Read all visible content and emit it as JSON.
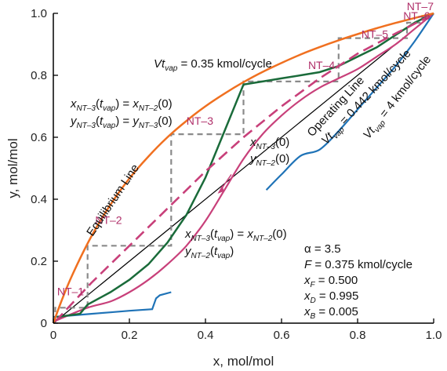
{
  "chart_data": {
    "type": "line",
    "xlabel": "x, mol/mol",
    "ylabel": "y, mol/mol",
    "xlim": [
      0,
      1
    ],
    "ylim": [
      0,
      1
    ],
    "xticks": [
      "0",
      "0.2",
      "0.4",
      "0.6",
      "0.8",
      "1.0"
    ],
    "yticks": [
      "0",
      "0.2",
      "0.4",
      "0.6",
      "0.8",
      "1.0"
    ],
    "grid": false,
    "colors": {
      "equilibrium": "#f07020",
      "operating": "#c8407a",
      "green": "#1a6b3a",
      "blue": "#1f73b7",
      "steps": "#8a8a8a",
      "nt_label": "#b0306a"
    },
    "series": [
      {
        "key": "equilibrium",
        "name": "Equilibrium Line",
        "points": [
          [
            0,
            0
          ],
          [
            0.02,
            0.067
          ],
          [
            0.05,
            0.156
          ],
          [
            0.1,
            0.28
          ],
          [
            0.15,
            0.382
          ],
          [
            0.2,
            0.467
          ],
          [
            0.25,
            0.538
          ],
          [
            0.3,
            0.6
          ],
          [
            0.35,
            0.653
          ],
          [
            0.4,
            0.7
          ],
          [
            0.45,
            0.741
          ],
          [
            0.5,
            0.778
          ],
          [
            0.55,
            0.811
          ],
          [
            0.6,
            0.84
          ],
          [
            0.65,
            0.867
          ],
          [
            0.7,
            0.891
          ],
          [
            0.75,
            0.913
          ],
          [
            0.8,
            0.933
          ],
          [
            0.85,
            0.952
          ],
          [
            0.9,
            0.969
          ],
          [
            0.95,
            0.985
          ],
          [
            1,
            1
          ]
        ]
      },
      {
        "key": "operating",
        "name": "Operating Line",
        "points": [
          [
            0.005,
            0.005
          ],
          [
            0.1,
            0.13
          ],
          [
            0.2,
            0.25
          ],
          [
            0.3,
            0.37
          ],
          [
            0.4,
            0.49
          ],
          [
            0.5,
            0.6
          ],
          [
            0.6,
            0.7
          ],
          [
            0.7,
            0.79
          ],
          [
            0.8,
            0.87
          ],
          [
            0.9,
            0.935
          ],
          [
            0.995,
            0.995
          ]
        ]
      },
      {
        "key": "green",
        "name": "Vt_vap = 0.35 kmol/cycle",
        "points": [
          [
            0.01,
            0.02
          ],
          [
            0.07,
            0.03
          ],
          [
            0.09,
            0.06
          ],
          [
            0.15,
            0.1
          ],
          [
            0.2,
            0.14
          ],
          [
            0.25,
            0.19
          ],
          [
            0.3,
            0.26
          ],
          [
            0.35,
            0.35
          ],
          [
            0.4,
            0.47
          ],
          [
            0.45,
            0.62
          ],
          [
            0.5,
            0.77
          ],
          [
            0.55,
            0.78
          ],
          [
            0.6,
            0.79
          ],
          [
            0.65,
            0.8
          ],
          [
            0.7,
            0.81
          ],
          [
            0.75,
            0.83
          ],
          [
            0.8,
            0.86
          ],
          [
            0.85,
            0.89
          ],
          [
            0.9,
            0.93
          ],
          [
            0.95,
            0.97
          ],
          [
            1,
            1
          ]
        ]
      },
      {
        "key": "pink_curve",
        "name": "Vt_vap = 0.442 kmol/cycle",
        "points": [
          [
            0.01,
            0.01
          ],
          [
            0.09,
            0.05
          ],
          [
            0.15,
            0.07
          ],
          [
            0.2,
            0.1
          ],
          [
            0.25,
            0.14
          ],
          [
            0.3,
            0.19
          ],
          [
            0.35,
            0.25
          ],
          [
            0.4,
            0.33
          ],
          [
            0.45,
            0.43
          ],
          [
            0.5,
            0.53
          ],
          [
            0.55,
            0.61
          ],
          [
            0.6,
            0.67
          ],
          [
            0.65,
            0.72
          ],
          [
            0.7,
            0.76
          ],
          [
            0.75,
            0.79
          ],
          [
            0.8,
            0.82
          ],
          [
            0.85,
            0.86
          ],
          [
            0.9,
            0.9
          ],
          [
            0.95,
            0.95
          ],
          [
            1,
            1
          ]
        ]
      },
      {
        "key": "blue",
        "name": "Vt_vap = 4 kmol/cycle",
        "points": [
          [
            0,
            0.02
          ],
          [
            0.1,
            0.03
          ],
          [
            0.15,
            0.035
          ],
          [
            0.2,
            0.04
          ],
          [
            0.26,
            0.045
          ],
          [
            0.27,
            0.08
          ],
          [
            0.28,
            0.09
          ],
          [
            0.31,
            0.1
          ]
        ],
        "points2": [
          [
            0.56,
            0.43
          ],
          [
            0.6,
            0.48
          ],
          [
            0.65,
            0.54
          ],
          [
            0.7,
            0.56
          ],
          [
            0.75,
            0.62
          ],
          [
            0.8,
            0.69
          ],
          [
            0.85,
            0.76
          ],
          [
            0.9,
            0.83
          ],
          [
            0.95,
            0.91
          ],
          [
            1,
            1
          ]
        ]
      }
    ],
    "steps": [
      [
        0.005,
        0.005
      ],
      [
        0.005,
        0.05
      ],
      [
        0.09,
        0.05
      ],
      [
        0.09,
        0.25
      ],
      [
        0.31,
        0.25
      ],
      [
        0.31,
        0.61
      ],
      [
        0.5,
        0.61
      ],
      [
        0.5,
        0.78
      ],
      [
        0.75,
        0.78
      ],
      [
        0.75,
        0.92
      ],
      [
        0.93,
        0.92
      ],
      [
        0.93,
        0.97
      ],
      [
        0.97,
        0.97
      ],
      [
        0.97,
        0.995
      ],
      [
        0.995,
        0.995
      ]
    ],
    "stage_labels": [
      {
        "text": "NT–1",
        "x": 0.01,
        "y": 0.09
      },
      {
        "text": "NT–2",
        "x": 0.11,
        "y": 0.32
      },
      {
        "text": "NT–3",
        "x": 0.35,
        "y": 0.64
      },
      {
        "text": "NT–4",
        "x": 0.67,
        "y": 0.82
      },
      {
        "text": "NT–5",
        "x": 0.81,
        "y": 0.92
      },
      {
        "text": "NT–6",
        "x": 0.92,
        "y": 0.98
      },
      {
        "text": "NT–7",
        "x": 1.0,
        "y": 1.01
      }
    ],
    "annotations": {
      "green_label": "Vt",
      "green_label_sub": "vap",
      "green_label_rest": " = 0.35 kmol/cycle",
      "eq_label": "Equilibrium Line",
      "op_label": "Operating Line",
      "op_vt": "Vt",
      "op_vt_sub": "vap",
      "op_vt_rest": " = 0.442 kmol/cycle",
      "blue_vt": "Vt",
      "blue_vt_sub": "vap",
      "blue_vt_rest": " = 4 kmol/cycle",
      "alpha": "α = 3.5",
      "F_var": "F",
      "F_rest": " = 0.375 kmol/cycle",
      "xF_var": "x",
      "xF_sub": "F",
      "xF_rest": " = 0.500",
      "xD_var": "x",
      "xD_sub": "D",
      "xD_rest": " = 0.995",
      "xB_var": "x",
      "xB_sub": "B",
      "xB_rest": " = 0.005"
    }
  }
}
